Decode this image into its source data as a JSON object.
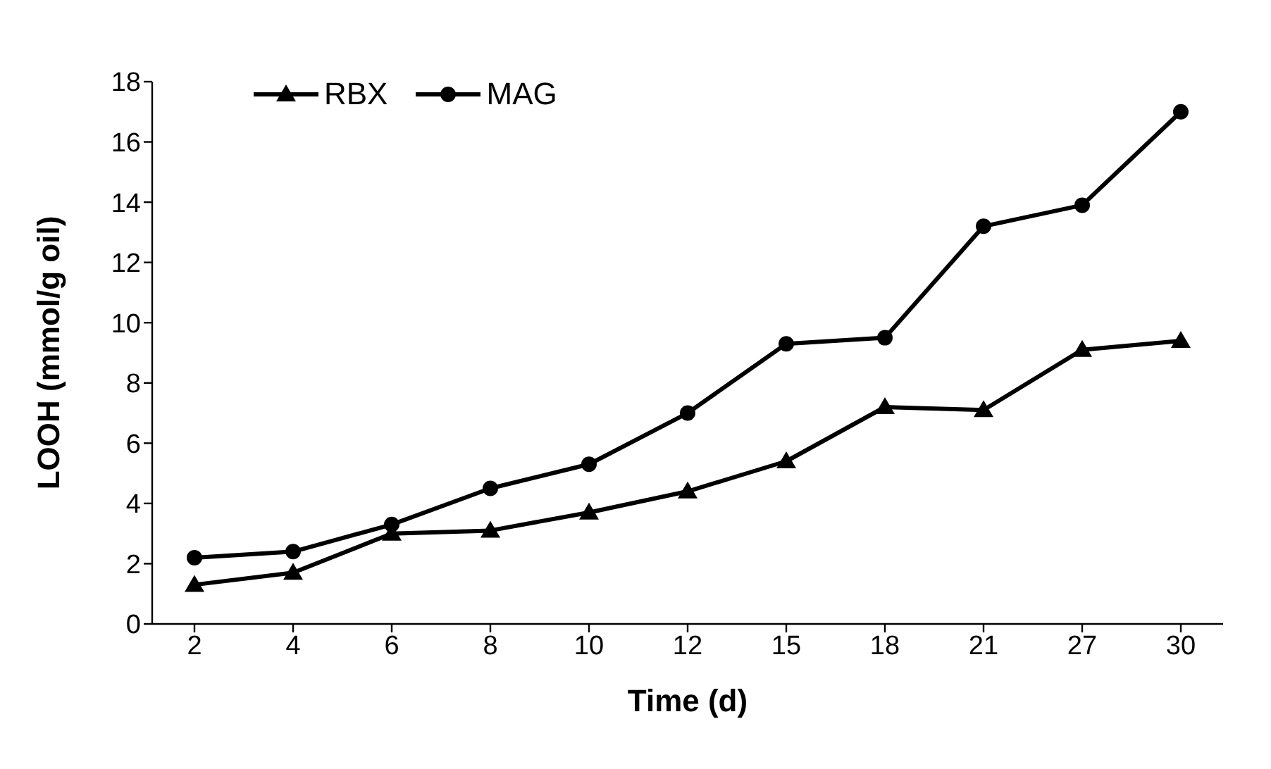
{
  "chart_data": {
    "type": "line",
    "xlabel": "Time (d)",
    "ylabel": "LOOH (mmol/g oil)",
    "categories": [
      "2",
      "4",
      "6",
      "8",
      "10",
      "12",
      "15",
      "18",
      "21",
      "27",
      "30"
    ],
    "series": [
      {
        "name": "RBX",
        "color": "#000000",
        "marker": "triangle",
        "values": [
          1.3,
          1.7,
          3.0,
          3.1,
          3.7,
          4.4,
          5.4,
          7.2,
          7.1,
          9.1,
          9.4
        ]
      },
      {
        "name": "MAG",
        "color": "#000000",
        "marker": "circle",
        "values": [
          2.2,
          2.4,
          3.3,
          4.5,
          5.3,
          7.0,
          9.3,
          9.5,
          13.2,
          13.9,
          17.0
        ]
      }
    ],
    "ylim": [
      0,
      18
    ],
    "yticks": [
      0,
      2,
      4,
      6,
      8,
      10,
      12,
      14,
      16,
      18
    ],
    "grid": false,
    "legend": "top left",
    "line_style": "solid"
  }
}
